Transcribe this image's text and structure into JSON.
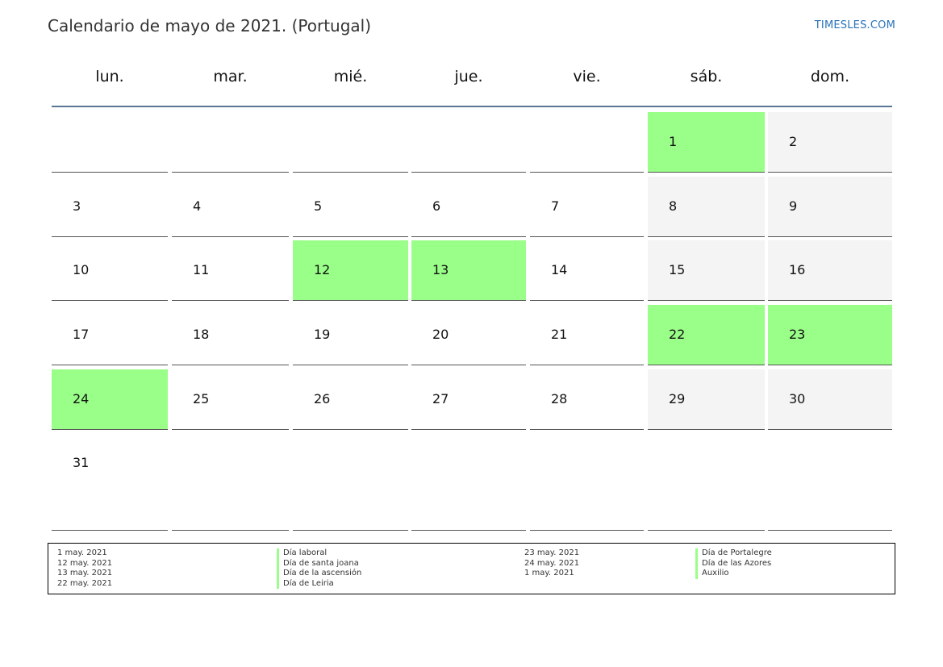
{
  "header": {
    "title": "Calendario de mayo de 2021. (Portugal)",
    "brand": "TIMESLES.COM"
  },
  "weekdays": [
    "lun.",
    "mar.",
    "mié.",
    "jue.",
    "vie.",
    "sáb.",
    "dom."
  ],
  "weeks": [
    [
      {
        "day": "",
        "type": "blank"
      },
      {
        "day": "",
        "type": "blank"
      },
      {
        "day": "",
        "type": "blank"
      },
      {
        "day": "",
        "type": "blank"
      },
      {
        "day": "",
        "type": "blank"
      },
      {
        "day": "1",
        "type": "holiday"
      },
      {
        "day": "2",
        "type": "weekend"
      }
    ],
    [
      {
        "day": "3",
        "type": "normal"
      },
      {
        "day": "4",
        "type": "normal"
      },
      {
        "day": "5",
        "type": "normal"
      },
      {
        "day": "6",
        "type": "normal"
      },
      {
        "day": "7",
        "type": "normal"
      },
      {
        "day": "8",
        "type": "weekend"
      },
      {
        "day": "9",
        "type": "weekend"
      }
    ],
    [
      {
        "day": "10",
        "type": "normal"
      },
      {
        "day": "11",
        "type": "normal"
      },
      {
        "day": "12",
        "type": "holiday"
      },
      {
        "day": "13",
        "type": "holiday"
      },
      {
        "day": "14",
        "type": "normal"
      },
      {
        "day": "15",
        "type": "weekend"
      },
      {
        "day": "16",
        "type": "weekend"
      }
    ],
    [
      {
        "day": "17",
        "type": "normal"
      },
      {
        "day": "18",
        "type": "normal"
      },
      {
        "day": "19",
        "type": "normal"
      },
      {
        "day": "20",
        "type": "normal"
      },
      {
        "day": "21",
        "type": "normal"
      },
      {
        "day": "22",
        "type": "holiday"
      },
      {
        "day": "23",
        "type": "holiday"
      }
    ],
    [
      {
        "day": "24",
        "type": "holiday"
      },
      {
        "day": "25",
        "type": "normal"
      },
      {
        "day": "26",
        "type": "normal"
      },
      {
        "day": "27",
        "type": "normal"
      },
      {
        "day": "28",
        "type": "normal"
      },
      {
        "day": "29",
        "type": "weekend"
      },
      {
        "day": "30",
        "type": "weekend"
      }
    ],
    [
      {
        "day": "31",
        "type": "normal"
      },
      {
        "day": "",
        "type": "blank"
      },
      {
        "day": "",
        "type": "blank"
      },
      {
        "day": "",
        "type": "blank"
      },
      {
        "day": "",
        "type": "blank"
      },
      {
        "day": "",
        "type": "blank"
      },
      {
        "day": "",
        "type": "blank"
      }
    ]
  ],
  "colors": {
    "holiday": "#99ff88",
    "weekend": "#f4f4f4",
    "header_line": "#5a7593",
    "brand": "#2a73b9"
  },
  "legend": {
    "left": [
      {
        "date": "1 may. 2021",
        "name": "Día laboral"
      },
      {
        "date": "12 may. 2021",
        "name": "Día de santa joana"
      },
      {
        "date": "13 may. 2021",
        "name": "Día de la ascensión"
      },
      {
        "date": "22 may. 2021",
        "name": "Día de Leiria"
      }
    ],
    "right": [
      {
        "date": "23 may. 2021",
        "name": "Día de Portalegre"
      },
      {
        "date": "24 may. 2021",
        "name": "Día de las Azores"
      },
      {
        "date": "1 may. 2021",
        "name": "Auxilio"
      }
    ]
  }
}
